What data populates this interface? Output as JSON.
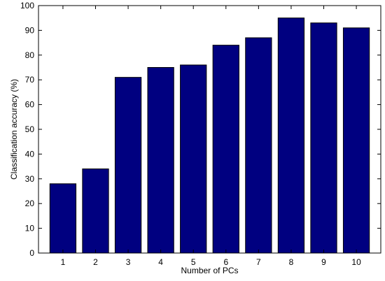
{
  "chart_data": {
    "type": "bar",
    "title": "",
    "xlabel": "Number of PCs",
    "ylabel": "Classification accuracy (%)",
    "categories": [
      "1",
      "2",
      "3",
      "4",
      "5",
      "6",
      "7",
      "8",
      "9",
      "10"
    ],
    "values": [
      28,
      34,
      71,
      75,
      76,
      84,
      87,
      95,
      93,
      91
    ],
    "ylim": [
      0,
      100
    ],
    "yticks": [
      0,
      10,
      20,
      30,
      40,
      50,
      60,
      70,
      80,
      90,
      100
    ],
    "grid": false,
    "legend": "none",
    "bar_color": "#000080",
    "bar_edge_color": "#000000"
  }
}
